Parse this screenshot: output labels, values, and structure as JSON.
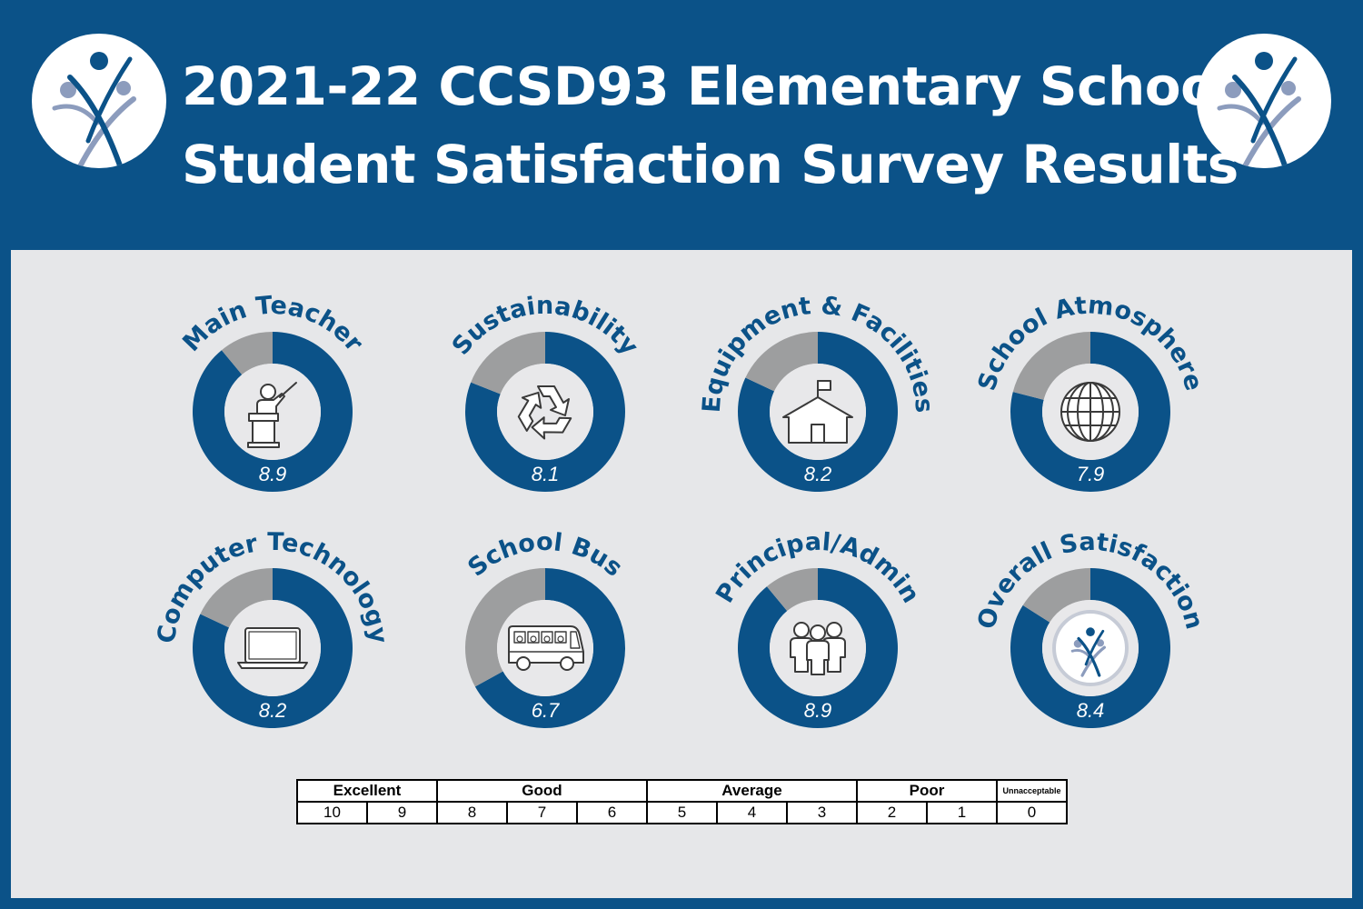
{
  "header": {
    "title_line1": "2021-22 CCSD93 Elementary School",
    "title_line2": "Student Satisfaction Survey Results"
  },
  "colors": {
    "brand_blue": "#0b5288",
    "remainder_gray": "#9d9e9f",
    "panel_bg": "#e6e7e9",
    "logo_light_blue": "#8c9cbd"
  },
  "chart_data": {
    "type": "pie",
    "max": 10,
    "items": [
      {
        "label": "Main Teacher",
        "value": 8.9,
        "value_label": "8.9",
        "icon": "teacher-lectern-icon"
      },
      {
        "label": "Sustainability",
        "value": 8.1,
        "value_label": "8.1",
        "icon": "recycle-icon"
      },
      {
        "label": "Equipment & Facilities",
        "value": 8.2,
        "value_label": "8.2",
        "icon": "schoolhouse-icon"
      },
      {
        "label": "School Atmosphere",
        "value": 7.9,
        "value_label": "7.9",
        "icon": "globe-icon"
      },
      {
        "label": "Computer Technology",
        "value": 8.2,
        "value_label": "8.2",
        "icon": "laptop-icon"
      },
      {
        "label": "School Bus",
        "value": 6.7,
        "value_label": "6.7",
        "icon": "school-bus-icon"
      },
      {
        "label": "Principal/Admin",
        "value": 8.9,
        "value_label": "8.9",
        "icon": "people-group-icon"
      },
      {
        "label": "Overall Satisfaction",
        "value": 8.4,
        "value_label": "8.4",
        "icon": "district-logo-icon"
      }
    ]
  },
  "scale": {
    "categories": [
      {
        "label": "Excellent",
        "span": 2
      },
      {
        "label": "Good",
        "span": 3
      },
      {
        "label": "Average",
        "span": 3
      },
      {
        "label": "Poor",
        "span": 2
      },
      {
        "label": "Unnacceptable",
        "span": 1
      }
    ],
    "values": [
      "10",
      "9",
      "8",
      "7",
      "6",
      "5",
      "4",
      "3",
      "2",
      "1",
      "0"
    ]
  }
}
